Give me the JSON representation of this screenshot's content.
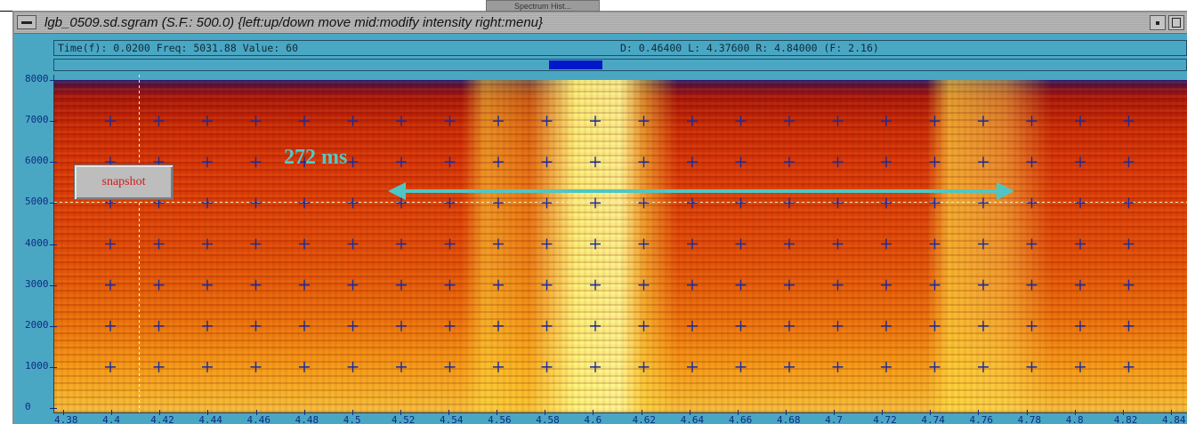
{
  "top_tab": {
    "label": "Spectrum Hist..."
  },
  "window": {
    "title": "lgb_0509.sd.sgram (S.F.: 500.0) {left:up/down move  mid:modify intensity  right:menu}"
  },
  "info_bar": {
    "left": "Time(f):  0.0200 Freq:  5031.88  Value:  60",
    "right": "D: 0.46400   L:  4.37600   R:  4.84000 (F:    2.16)"
  },
  "y_axis": {
    "labels": [
      "8000",
      "7000",
      "6000",
      "5000",
      "4000",
      "3000",
      "2000",
      "1000",
      "0"
    ]
  },
  "x_axis": {
    "labels": [
      "4.38",
      "4.4",
      "4.42",
      "4.44",
      "4.46",
      "4.48",
      "4.5",
      "4.52",
      "4.54",
      "4.56",
      "4.58",
      "4.6",
      "4.62",
      "4.64",
      "4.66",
      "4.68",
      "4.7",
      "4.72",
      "4.74",
      "4.76",
      "4.78",
      "4.8",
      "4.82",
      "4.84"
    ]
  },
  "snapshot_button": {
    "label": "snapshot"
  },
  "annotation": {
    "label": "272 ms"
  },
  "colors": {
    "window_bg": "#4aa7c4",
    "axis_text": "#0d2c80",
    "annotation": "#55c8c8",
    "snapshot_text": "#d21a1a",
    "scroll_thumb": "#0018c8"
  }
}
